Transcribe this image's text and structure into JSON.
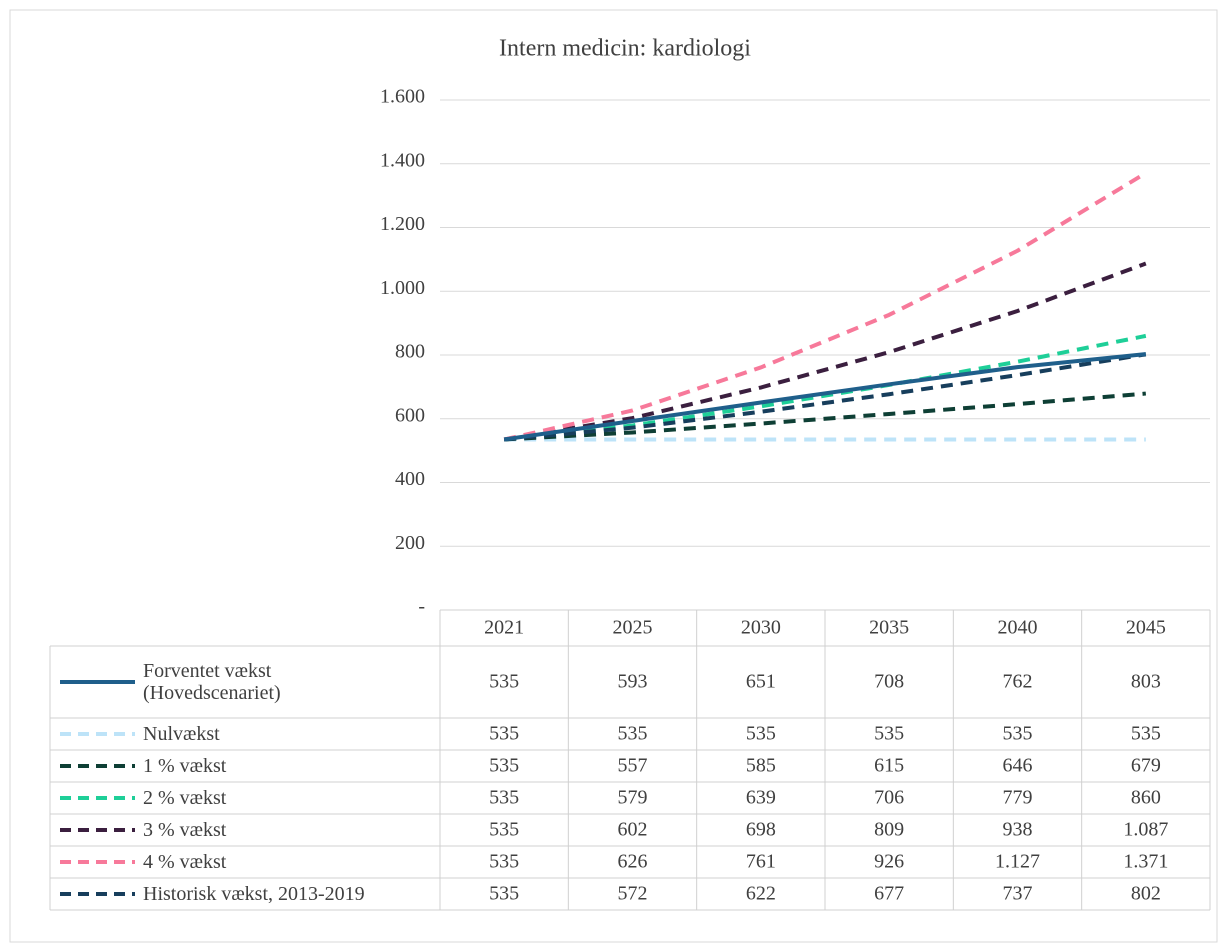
{
  "chart_data": {
    "type": "line",
    "title": "Intern medicin: kardiologi",
    "categories": [
      "2021",
      "2025",
      "2030",
      "2035",
      "2040",
      "2045"
    ],
    "ylim": [
      0,
      1600
    ],
    "yticks": [
      {
        "value": 0,
        "label": "-"
      },
      200,
      400,
      600,
      800,
      {
        "value": 1000,
        "label": "1.000"
      },
      {
        "value": 1200,
        "label": "1.200"
      },
      {
        "value": 1400,
        "label": "1.400"
      },
      {
        "value": 1600,
        "label": "1.600"
      }
    ],
    "grid": true,
    "series": [
      {
        "name": "Forventet vækst (Hovedscenariet)",
        "color": "#1f5f8b",
        "dashed": false,
        "values": [
          535,
          593,
          651,
          708,
          762,
          803
        ]
      },
      {
        "name": "Nulvækst",
        "color": "#bde3f8",
        "dashed": true,
        "values": [
          535,
          535,
          535,
          535,
          535,
          535
        ]
      },
      {
        "name": "1 % vækst",
        "color": "#0e3f35",
        "dashed": true,
        "values": [
          535,
          557,
          585,
          615,
          646,
          679
        ]
      },
      {
        "name": "2 % vækst",
        "color": "#1ecf98",
        "dashed": true,
        "values": [
          535,
          579,
          639,
          706,
          779,
          860
        ]
      },
      {
        "name": "3 % vækst",
        "color": "#3b1f3f",
        "dashed": true,
        "values": [
          535,
          602,
          698,
          809,
          938,
          1087
        ],
        "value_labels": [
          "535",
          "602",
          "698",
          "809",
          "938",
          "1.087"
        ]
      },
      {
        "name": "4 % vækst",
        "color": "#f7799a",
        "dashed": true,
        "values": [
          535,
          626,
          761,
          926,
          1127,
          1371
        ],
        "value_labels": [
          "535",
          "626",
          "761",
          "926",
          "1.127",
          "1.371"
        ]
      },
      {
        "name": "Historisk vækst, 2013-2019",
        "color": "#173e5c",
        "dashed": true,
        "values": [
          535,
          572,
          622,
          677,
          737,
          802
        ]
      }
    ]
  }
}
